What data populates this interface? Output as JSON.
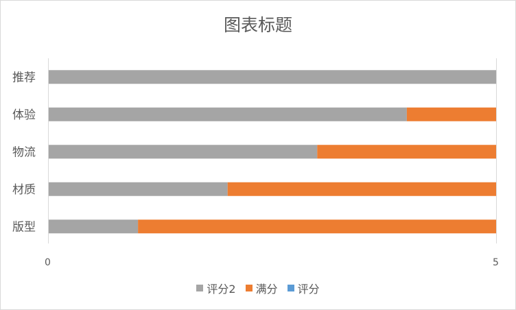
{
  "chart_data": {
    "type": "bar",
    "orientation": "horizontal",
    "stacked": true,
    "title": "图表标题",
    "categories": [
      "推荐",
      "体验",
      "物流",
      "材质",
      "版型"
    ],
    "series": [
      {
        "name": "评分2",
        "color": "#a5a5a5",
        "values": [
          5,
          4,
          3,
          2,
          1
        ]
      },
      {
        "name": "满分",
        "color": "#ed7d31",
        "values": [
          0,
          1,
          2,
          3,
          4
        ]
      },
      {
        "name": "评分",
        "color": "#5b9bd5",
        "values": [
          0,
          0,
          0,
          0,
          0
        ]
      }
    ],
    "xlim": [
      0,
      5
    ],
    "x_ticks": [
      "0",
      "5"
    ],
    "legend_position": "bottom",
    "grid": false
  }
}
